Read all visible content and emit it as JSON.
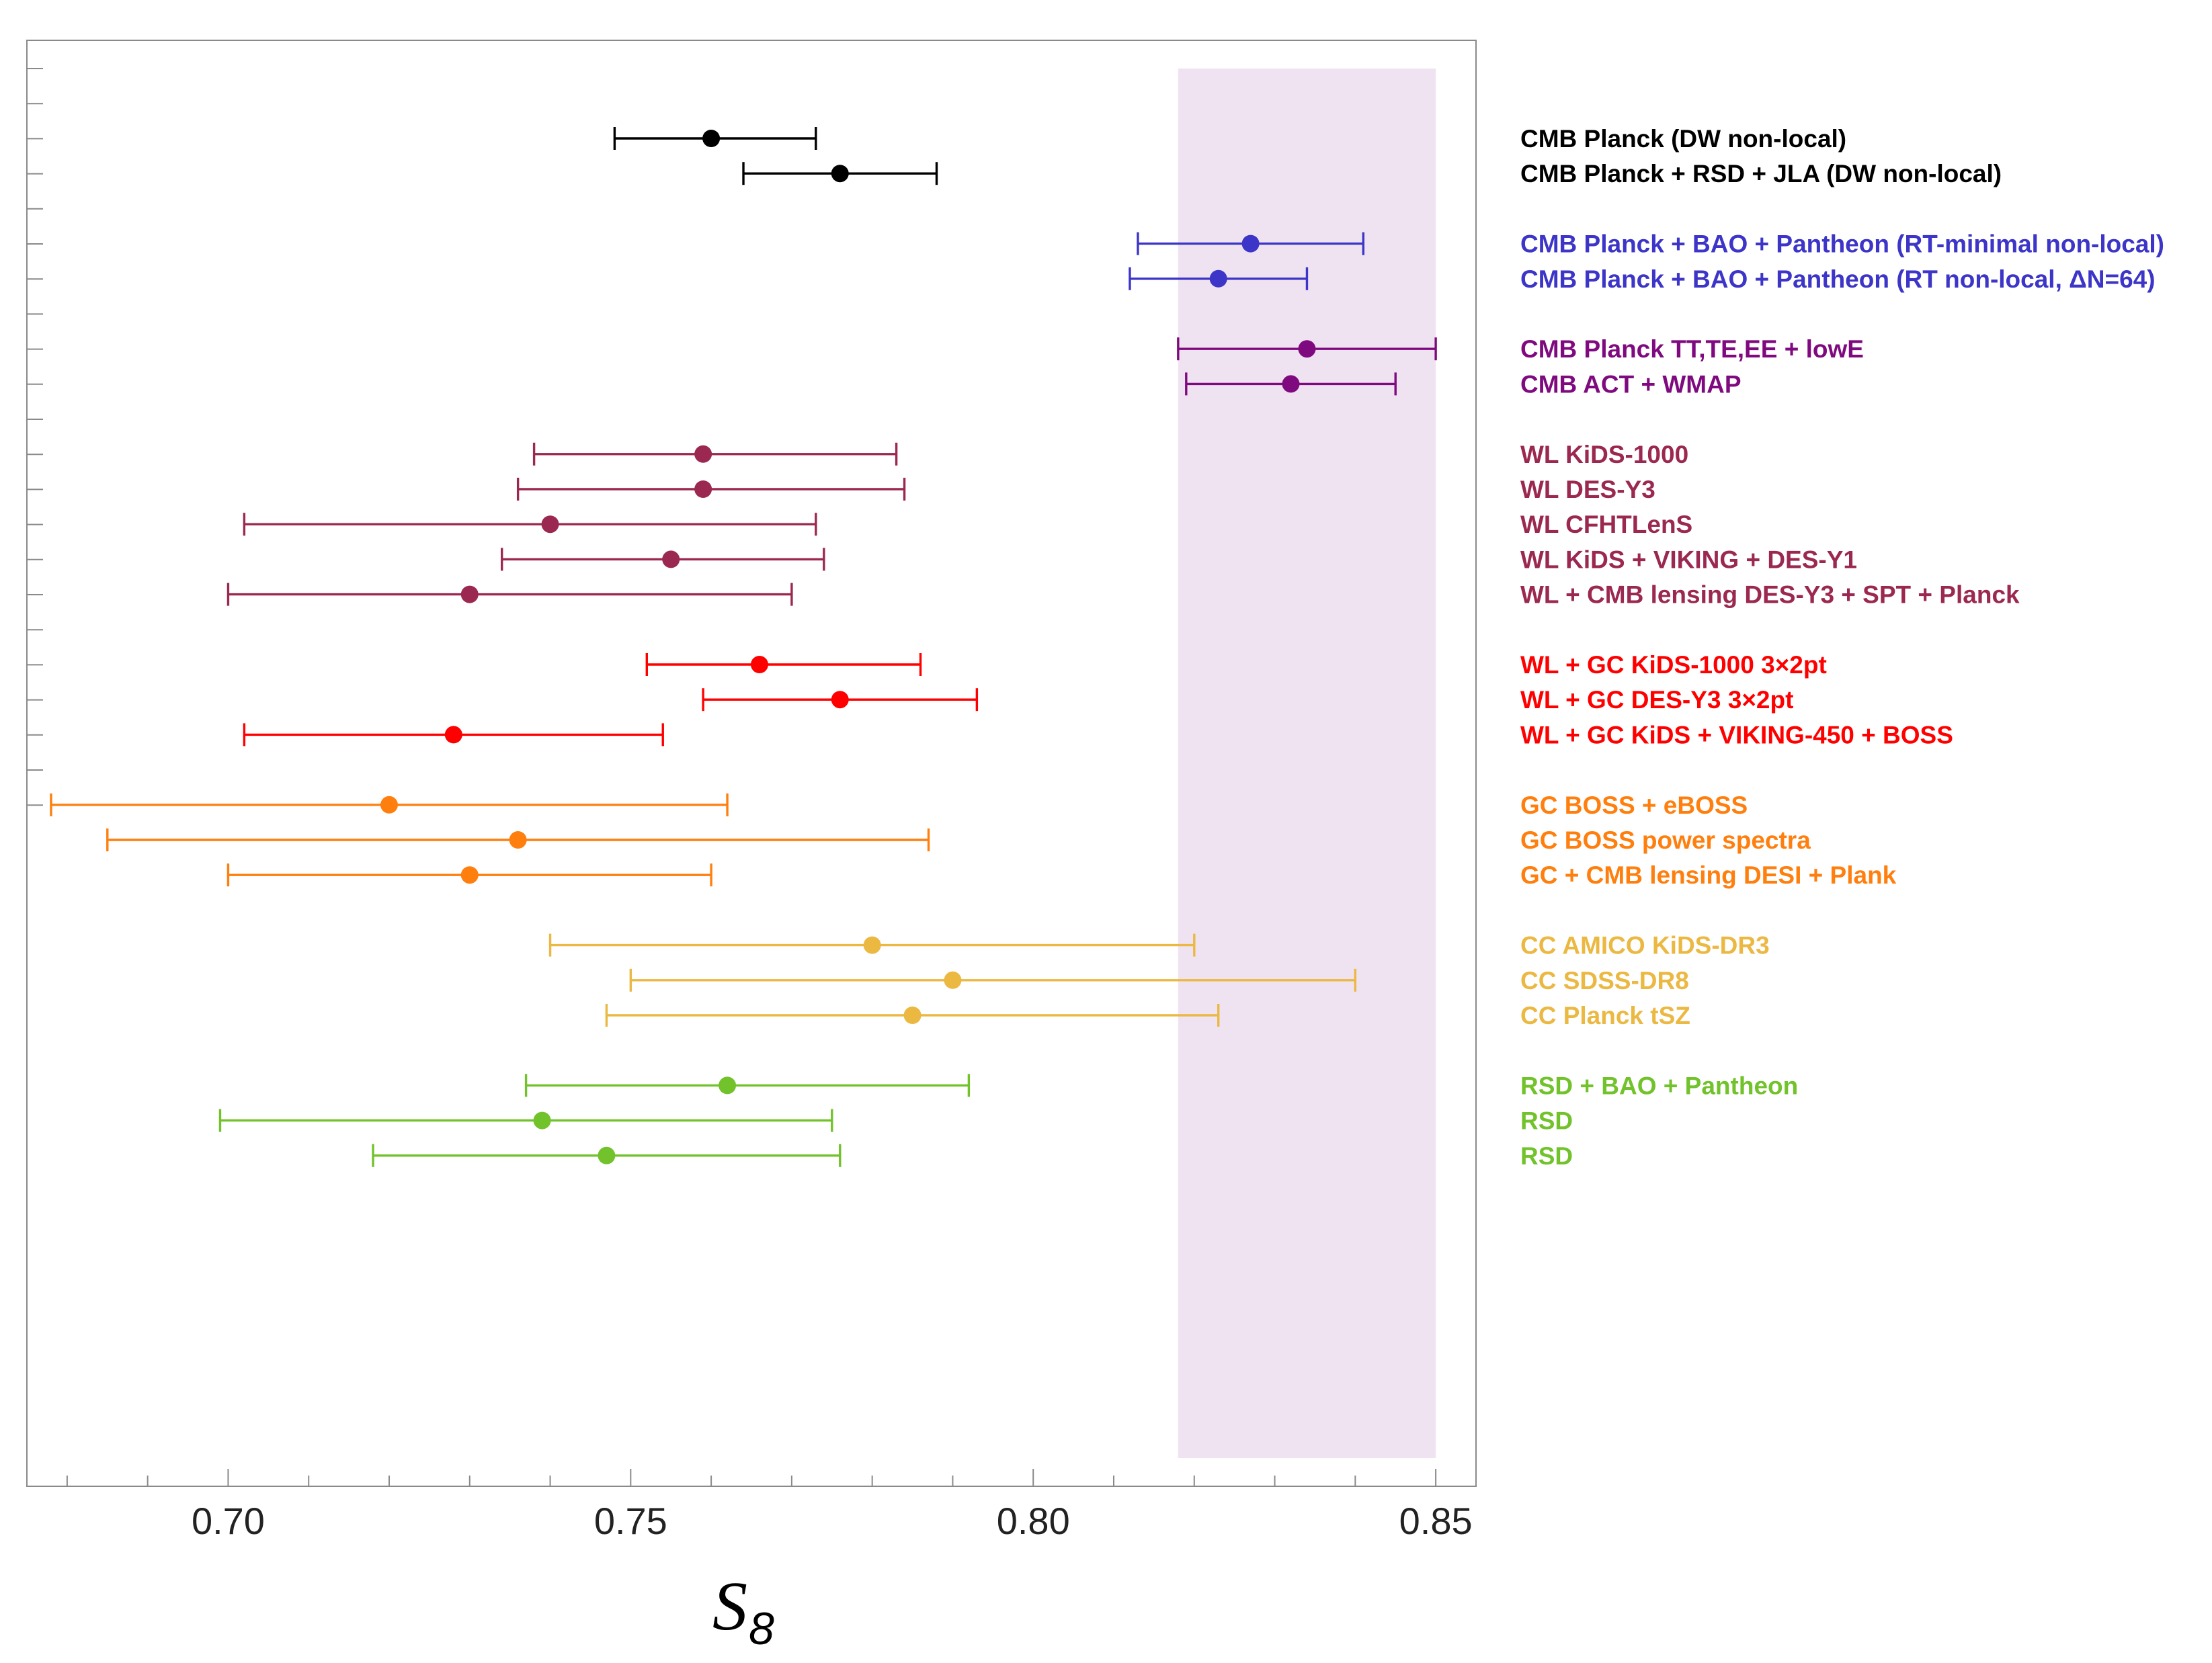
{
  "chart_data": {
    "type": "scatter",
    "subtype": "forest-plot-with-error-bars",
    "title": "",
    "xlabel": "S",
    "xlabel_subscript": "8",
    "ylabel": "",
    "xlim": [
      0.675,
      0.855
    ],
    "x_ticks": [
      "0.70",
      "0.75",
      "0.80",
      "0.85"
    ],
    "grid": false,
    "legend_position": "right",
    "shaded_band": {
      "x_range": [
        0.818,
        0.85
      ],
      "color": "#efe3f1"
    },
    "groups": [
      {
        "color": "#000000",
        "entries": [
          {
            "label": "CMB Planck (DW non-local)",
            "value": 0.76,
            "low": 0.748,
            "high": 0.773
          },
          {
            "label": "CMB Planck + RSD + JLA (DW non-local)",
            "value": 0.776,
            "low": 0.764,
            "high": 0.788
          }
        ]
      },
      {
        "color": "#3c35c8",
        "entries": [
          {
            "label": "CMB Planck + BAO + Pantheon (RT-minimal non-local)",
            "value": 0.827,
            "low": 0.813,
            "high": 0.841
          },
          {
            "label": "CMB Planck + BAO + Pantheon (RT non-local, ΔN=64)",
            "value": 0.823,
            "low": 0.812,
            "high": 0.834
          }
        ]
      },
      {
        "color": "#7f0a7f",
        "entries": [
          {
            "label": "CMB Planck TT,TE,EE + lowE",
            "value": 0.834,
            "low": 0.818,
            "high": 0.85
          },
          {
            "label": "CMB ACT + WMAP",
            "value": 0.832,
            "low": 0.819,
            "high": 0.845
          }
        ]
      },
      {
        "color": "#9b2850",
        "entries": [
          {
            "label": "WL KiDS-1000",
            "value": 0.759,
            "low": 0.738,
            "high": 0.783
          },
          {
            "label": "WL DES-Y3",
            "value": 0.759,
            "low": 0.736,
            "high": 0.784
          },
          {
            "label": "WL CFHTLenS",
            "value": 0.74,
            "low": 0.702,
            "high": 0.773
          },
          {
            "label": "WL KiDS + VIKING + DES-Y1",
            "value": 0.755,
            "low": 0.734,
            "high": 0.774
          },
          {
            "label": "WL + CMB lensing DES-Y3 + SPT + Planck",
            "value": 0.73,
            "low": 0.7,
            "high": 0.77
          }
        ]
      },
      {
        "color": "#ff0000",
        "entries": [
          {
            "label": "WL + GC KiDS-1000 3×2pt",
            "value": 0.766,
            "low": 0.752,
            "high": 0.786
          },
          {
            "label": "WL + GC DES-Y3 3×2pt",
            "value": 0.776,
            "low": 0.759,
            "high": 0.793
          },
          {
            "label": "WL + GC KiDS + VIKING-450 + BOSS",
            "value": 0.728,
            "low": 0.702,
            "high": 0.754
          }
        ]
      },
      {
        "color": "#ff7f0e",
        "entries": [
          {
            "label": "GC BOSS + eBOSS",
            "value": 0.72,
            "low": 0.678,
            "high": 0.762
          },
          {
            "label": "GC BOSS power spectra",
            "value": 0.736,
            "low": 0.685,
            "high": 0.787
          },
          {
            "label": "GC + CMB lensing DESI + Plank",
            "value": 0.73,
            "low": 0.7,
            "high": 0.76
          }
        ]
      },
      {
        "color": "#ebb842",
        "entries": [
          {
            "label": "CC AMICO KiDS-DR3",
            "value": 0.78,
            "low": 0.74,
            "high": 0.82
          },
          {
            "label": "CC SDSS-DR8",
            "value": 0.79,
            "low": 0.75,
            "high": 0.84
          },
          {
            "label": "CC Planck tSZ",
            "value": 0.785,
            "low": 0.747,
            "high": 0.823
          }
        ]
      },
      {
        "color": "#72c22b",
        "entries": [
          {
            "label": "RSD + BAO + Pantheon",
            "value": 0.762,
            "low": 0.737,
            "high": 0.792
          },
          {
            "label": "RSD",
            "value": 0.739,
            "low": 0.699,
            "high": 0.775
          },
          {
            "label": "RSD",
            "value": 0.747,
            "low": 0.718,
            "high": 0.776
          }
        ]
      }
    ]
  }
}
